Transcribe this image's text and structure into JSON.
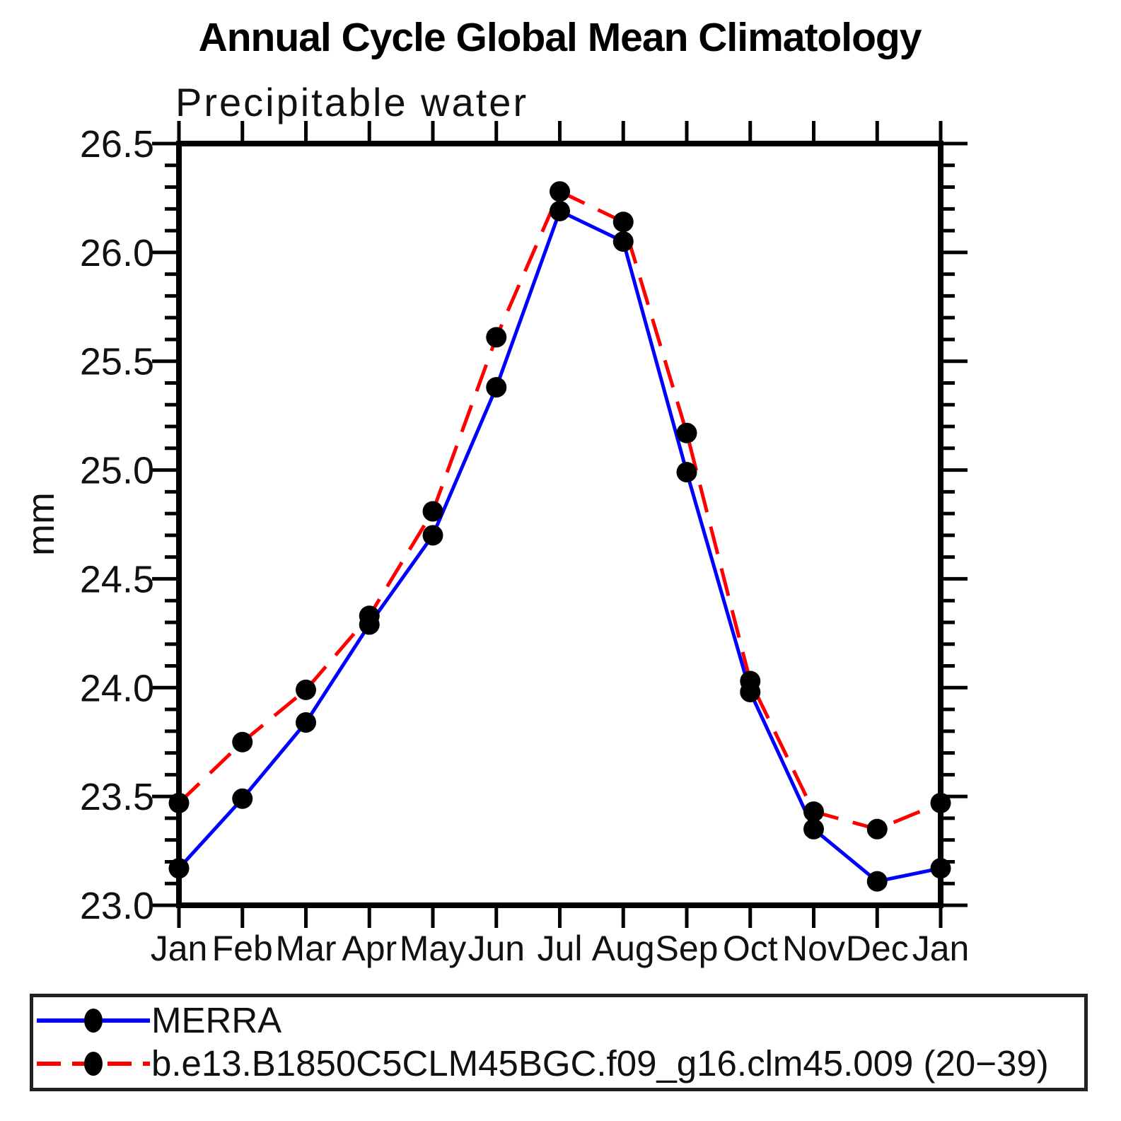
{
  "chart_data": {
    "type": "line",
    "title": "Annual Cycle Global Mean Climatology",
    "subtitle": "Precipitable water",
    "ylabel": "mm",
    "x_categories": [
      "Jan",
      "Feb",
      "Mar",
      "Apr",
      "May",
      "Jun",
      "Jul",
      "Aug",
      "Sep",
      "Oct",
      "Nov",
      "Dec",
      "Jan"
    ],
    "ylim": [
      23.0,
      26.5
    ],
    "y_major_step": 0.5,
    "y_minor_step": 0.1,
    "y_major_tick_labels": [
      "23.0",
      "23.5",
      "24.0",
      "24.5",
      "25.0",
      "25.5",
      "26.0",
      "26.5"
    ],
    "grid": "off",
    "legend_position": "bottom-left-box",
    "axis_color": "#000000",
    "marker_color": "#000000",
    "series": [
      {
        "name": "MERRA",
        "color": "#0000ff",
        "line_style": "solid",
        "marker": "filled-circle",
        "values": [
          23.17,
          23.49,
          23.84,
          24.29,
          24.7,
          25.38,
          26.19,
          26.05,
          24.99,
          23.98,
          23.35,
          23.11,
          23.17
        ]
      },
      {
        "name": "b.e13.B1850C5CLM45BGC.f09_g16.clm45.009 (20−39)",
        "color": "#ff0000",
        "line_style": "dashed",
        "marker": "filled-circle",
        "values": [
          23.47,
          23.75,
          23.99,
          24.33,
          24.81,
          25.61,
          26.28,
          26.14,
          25.17,
          24.03,
          23.43,
          23.35,
          23.47
        ]
      }
    ]
  }
}
